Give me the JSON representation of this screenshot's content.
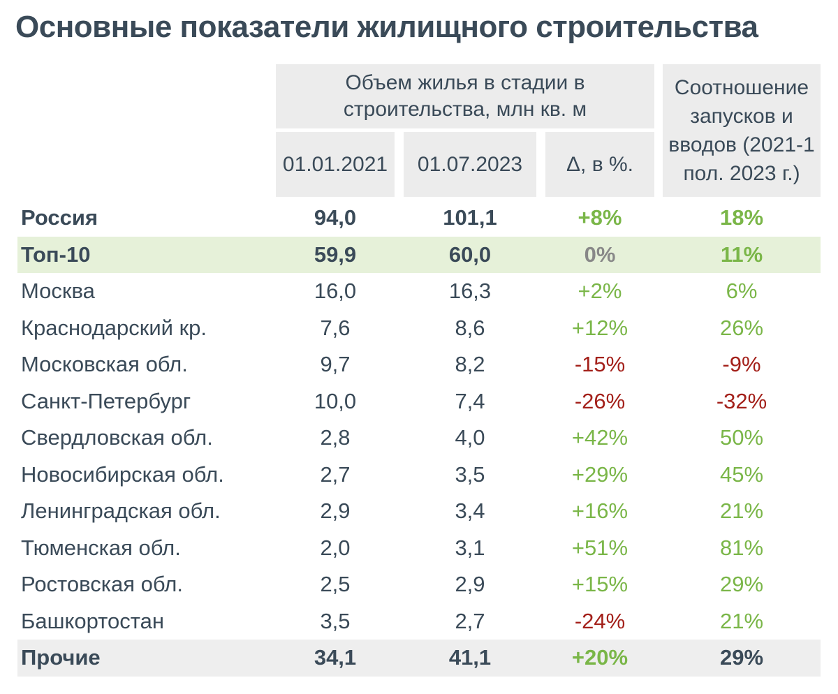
{
  "title": "Основные показатели жилищного строительства",
  "headers": {
    "volume_group": "Объем жилья в стадии в строительства, млн кв. м",
    "col_2021": "01.01.2021",
    "col_2023": "01.07.2023",
    "col_delta": "Δ, в %.",
    "ratio": "Соотношение запусков и вводов  (2021-1 пол. 2023 г.)"
  },
  "colors": {
    "positive": "#7ab648",
    "negative": "#a3201a",
    "neutral": "#888888",
    "text": "#3a4a58",
    "highlight_green": "#e6f1d9",
    "highlight_grey": "#eeeeee"
  },
  "rows": [
    {
      "name": "Россия",
      "v2021": "94,0",
      "v2023": "101,1",
      "delta": "+8%",
      "delta_sign": "pos",
      "ratio": "18%",
      "ratio_sign": "pos",
      "bold": true,
      "highlight": ""
    },
    {
      "name": "Топ-10",
      "v2021": "59,9",
      "v2023": "60,0",
      "delta": "0%",
      "delta_sign": "neu",
      "ratio": "11%",
      "ratio_sign": "pos",
      "bold": true,
      "highlight": "green"
    },
    {
      "name": "Москва",
      "v2021": "16,0",
      "v2023": "16,3",
      "delta": "+2%",
      "delta_sign": "pos",
      "ratio": "6%",
      "ratio_sign": "pos",
      "bold": false,
      "highlight": ""
    },
    {
      "name": "Краснодарский кр.",
      "v2021": "7,6",
      "v2023": "8,6",
      "delta": "+12%",
      "delta_sign": "pos",
      "ratio": "26%",
      "ratio_sign": "pos",
      "bold": false,
      "highlight": ""
    },
    {
      "name": "Московская обл.",
      "v2021": "9,7",
      "v2023": "8,2",
      "delta": "-15%",
      "delta_sign": "neg",
      "ratio": "-9%",
      "ratio_sign": "neg",
      "bold": false,
      "highlight": ""
    },
    {
      "name": "Санкт-Петербург",
      "v2021": "10,0",
      "v2023": "7,4",
      "delta": "-26%",
      "delta_sign": "neg",
      "ratio": "-32%",
      "ratio_sign": "neg",
      "bold": false,
      "highlight": ""
    },
    {
      "name": "Свердловская обл.",
      "v2021": "2,8",
      "v2023": "4,0",
      "delta": "+42%",
      "delta_sign": "pos",
      "ratio": "50%",
      "ratio_sign": "pos",
      "bold": false,
      "highlight": ""
    },
    {
      "name": "Новосибирская обл.",
      "v2021": "2,7",
      "v2023": "3,5",
      "delta": "+29%",
      "delta_sign": "pos",
      "ratio": "45%",
      "ratio_sign": "pos",
      "bold": false,
      "highlight": ""
    },
    {
      "name": "Ленинградская обл.",
      "v2021": "2,9",
      "v2023": "3,4",
      "delta": "+16%",
      "delta_sign": "pos",
      "ratio": "21%",
      "ratio_sign": "pos",
      "bold": false,
      "highlight": ""
    },
    {
      "name": "Тюменская обл.",
      "v2021": "2,0",
      "v2023": "3,1",
      "delta": "+51%",
      "delta_sign": "pos",
      "ratio": "81%",
      "ratio_sign": "pos",
      "bold": false,
      "highlight": ""
    },
    {
      "name": "Ростовская обл.",
      "v2021": "2,5",
      "v2023": "2,9",
      "delta": "+15%",
      "delta_sign": "pos",
      "ratio": "29%",
      "ratio_sign": "pos",
      "bold": false,
      "highlight": ""
    },
    {
      "name": "Башкортостан",
      "v2021": "3,5",
      "v2023": "2,7",
      "delta": "-24%",
      "delta_sign": "neg",
      "ratio": "21%",
      "ratio_sign": "pos",
      "bold": false,
      "highlight": ""
    },
    {
      "name": "Прочие",
      "v2021": "34,1",
      "v2023": "41,1",
      "delta": "+20%",
      "delta_sign": "pos",
      "ratio": "29%",
      "ratio_sign": "dark",
      "bold": true,
      "highlight": "grey"
    }
  ]
}
